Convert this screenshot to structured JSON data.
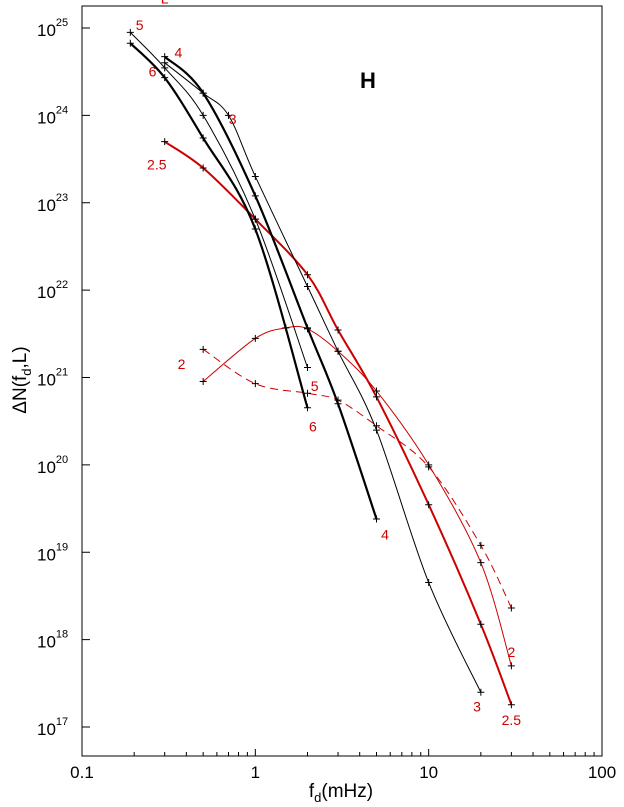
{
  "chart_data": {
    "type": "line",
    "title": "",
    "panel_label": "H",
    "legend_title": "L",
    "xlabel": {
      "main": "f",
      "sub": "d",
      "rest": "(mHz)"
    },
    "ylabel": {
      "main": "ΔN(f",
      "sub": "d",
      "rest": ",L)"
    },
    "xscale": "log",
    "yscale": "log",
    "xlim": [
      0.1,
      100
    ],
    "ylim": [
      1e+17,
      1e+25
    ],
    "grid": false,
    "x_ticks": [
      {
        "value": 0.1,
        "label": "0.1"
      },
      {
        "value": 1,
        "label": "1"
      },
      {
        "value": 10,
        "label": "10"
      },
      {
        "value": 100,
        "label": "100"
      }
    ],
    "y_ticks": [
      {
        "value": 1e+17,
        "base": "10",
        "exp": "17"
      },
      {
        "value": 1e+18,
        "base": "10",
        "exp": "18"
      },
      {
        "value": 1e+19,
        "base": "10",
        "exp": "19"
      },
      {
        "value": 1e+20,
        "base": "10",
        "exp": "20"
      },
      {
        "value": 1e+21,
        "base": "10",
        "exp": "21"
      },
      {
        "value": 1e+22,
        "base": "10",
        "exp": "22"
      },
      {
        "value": 1e+23,
        "base": "10",
        "exp": "23"
      },
      {
        "value": 1e+24,
        "base": "10",
        "exp": "24"
      },
      {
        "value": 1e+25,
        "base": "10",
        "exp": "25"
      }
    ],
    "series": [
      {
        "name": "2",
        "color": "#cc0000",
        "style": "dashed",
        "x": [
          0.5,
          1.0,
          2.0,
          3.0,
          5.0,
          10.0,
          20.0,
          30.0
        ],
        "y": [
          2.1e+21,
          8.5e+20,
          6.6e+20,
          5.5e+20,
          2.8e+20,
          9.5e+19,
          1.2e+19,
          2.3e+18
        ]
      },
      {
        "name": "2",
        "color": "#cc0000",
        "style": "thin",
        "x": [
          0.5,
          1.0,
          1.5,
          2.0,
          3.0,
          5.0,
          10.0,
          20.0,
          30.0
        ],
        "y": [
          9e+20,
          2.8e+21,
          3.7e+21,
          3.6e+21,
          2e+21,
          7e+20,
          1e+20,
          7.6e+18,
          5e+17
        ]
      },
      {
        "name": "2.5",
        "color": "#cc0000",
        "style": "thick",
        "x": [
          0.3,
          0.5,
          1.0,
          2.0,
          3.0,
          5.0,
          10.0,
          20.0,
          30.0
        ],
        "y": [
          5e+23,
          2.5e+23,
          6.5e+22,
          1.5e+22,
          3.5e+21,
          6e+20,
          3.5e+19,
          1.5e+18,
          1.8e+17
        ]
      },
      {
        "name": "3",
        "color": "#000000",
        "style": "thin",
        "x": [
          0.3,
          0.5,
          0.7,
          1.0,
          2.0,
          3.0,
          5.0,
          10.0,
          20.0
        ],
        "y": [
          4e+24,
          1.8e+24,
          1e+24,
          2e+23,
          1.1e+22,
          2e+21,
          2.5e+20,
          4.5e+18,
          2.5e+17
        ]
      },
      {
        "name": "4",
        "color": "#000000",
        "style": "thick",
        "x": [
          0.3,
          0.5,
          1.0,
          2.0,
          3.0,
          5.0
        ],
        "y": [
          4.7e+24,
          1.8e+24,
          1.2e+23,
          3.7e+21,
          5e+20,
          2.4e+19
        ]
      },
      {
        "name": "5",
        "color": "#000000",
        "style": "thin",
        "x": [
          0.19,
          0.3,
          0.5,
          1.0,
          2.0
        ],
        "y": [
          8.9e+24,
          3.5e+24,
          1e+24,
          6.5e+22,
          1.3e+21
        ]
      },
      {
        "name": "6",
        "color": "#000000",
        "style": "thick",
        "x": [
          0.19,
          0.3,
          0.5,
          1.0,
          2.0
        ],
        "y": [
          6.7e+24,
          2.7e+24,
          5.5e+23,
          5e+22,
          4.5e+20
        ]
      }
    ],
    "curve_labels": [
      {
        "text": "L",
        "x": 0.3,
        "y": 1.9e+25,
        "color": "#cc0000"
      },
      {
        "text": "5",
        "x": 0.215,
        "y": 9.5e+24,
        "color": "#cc0000"
      },
      {
        "text": "4",
        "x": 0.36,
        "y": 4.6e+24,
        "color": "#cc0000"
      },
      {
        "text": "6",
        "x": 0.255,
        "y": 2.8e+24,
        "color": "#cc0000"
      },
      {
        "text": "3",
        "x": 0.74,
        "y": 8e+23,
        "color": "#cc0000"
      },
      {
        "text": "2.5",
        "x": 0.27,
        "y": 2.4e+23,
        "color": "#cc0000"
      },
      {
        "text": "2",
        "x": 0.375,
        "y": 1.25e+21,
        "color": "#cc0000"
      },
      {
        "text": "5",
        "x": 2.2,
        "y": 7e+20,
        "color": "#cc0000"
      },
      {
        "text": "6",
        "x": 2.15,
        "y": 2.4e+20,
        "color": "#cc0000"
      },
      {
        "text": "4",
        "x": 5.6,
        "y": 1.4e+19,
        "color": "#cc0000"
      },
      {
        "text": "2",
        "x": 30,
        "y": 6.3e+17,
        "color": "#cc0000"
      },
      {
        "text": "3",
        "x": 19,
        "y": 1.5e+17,
        "color": "#cc0000"
      },
      {
        "text": "2.5",
        "x": 30,
        "y": 1.05e+17,
        "color": "#cc0000"
      }
    ]
  }
}
